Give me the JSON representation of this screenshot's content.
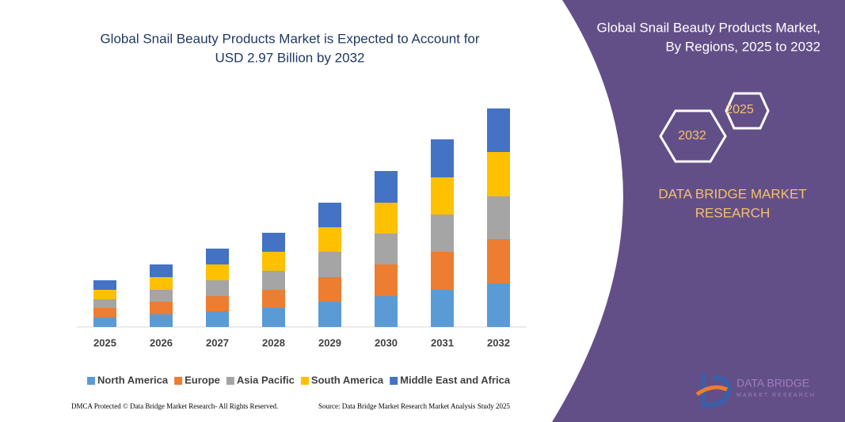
{
  "chart_data": {
    "type": "stacked-bar",
    "title": [
      "Global Snail Beauty Products Market is Expected to Account for",
      "USD 2.97 Billion by 2032"
    ],
    "categories": [
      "2025",
      "2026",
      "2027",
      "2028",
      "2029",
      "2030",
      "2031",
      "2032"
    ],
    "series": [
      {
        "name": "North America",
        "color": "#5b9bd5",
        "values": [
          12,
          16,
          20,
          24,
          32,
          39,
          47,
          55
        ]
      },
      {
        "name": "Europe",
        "color": "#ed7d31",
        "values": [
          12,
          16,
          19,
          23,
          31,
          40,
          48,
          56
        ]
      },
      {
        "name": "Asia Pacific",
        "color": "#a5a5a5",
        "values": [
          11,
          15,
          20,
          24,
          32,
          39,
          47,
          54
        ]
      },
      {
        "name": "South America",
        "color": "#ffc000",
        "values": [
          12,
          16,
          20,
          24,
          31,
          39,
          47,
          56
        ]
      },
      {
        "name": "Middle East and Africa",
        "color": "#4472c4",
        "values": [
          12,
          16,
          20,
          24,
          31,
          40,
          48,
          55
        ]
      }
    ],
    "ylim": [
      0,
      300
    ]
  },
  "panel": {
    "title": [
      "Global Snail Beauty Products Market,",
      "By Regions, 2025 to 2032"
    ],
    "hex_labels": [
      "2025",
      "2032"
    ],
    "brand": [
      "DATA BRIDGE MARKET",
      "RESEARCH"
    ],
    "logo": [
      "DATA BRIDGE",
      "MARKET RESEARCH"
    ]
  },
  "footer": {
    "left": "DMCA Protected © Data Bridge Market Research-  All Rights Reserved.",
    "right": "Source: Data Bridge Market Research  Market Analysis Study 2025"
  }
}
